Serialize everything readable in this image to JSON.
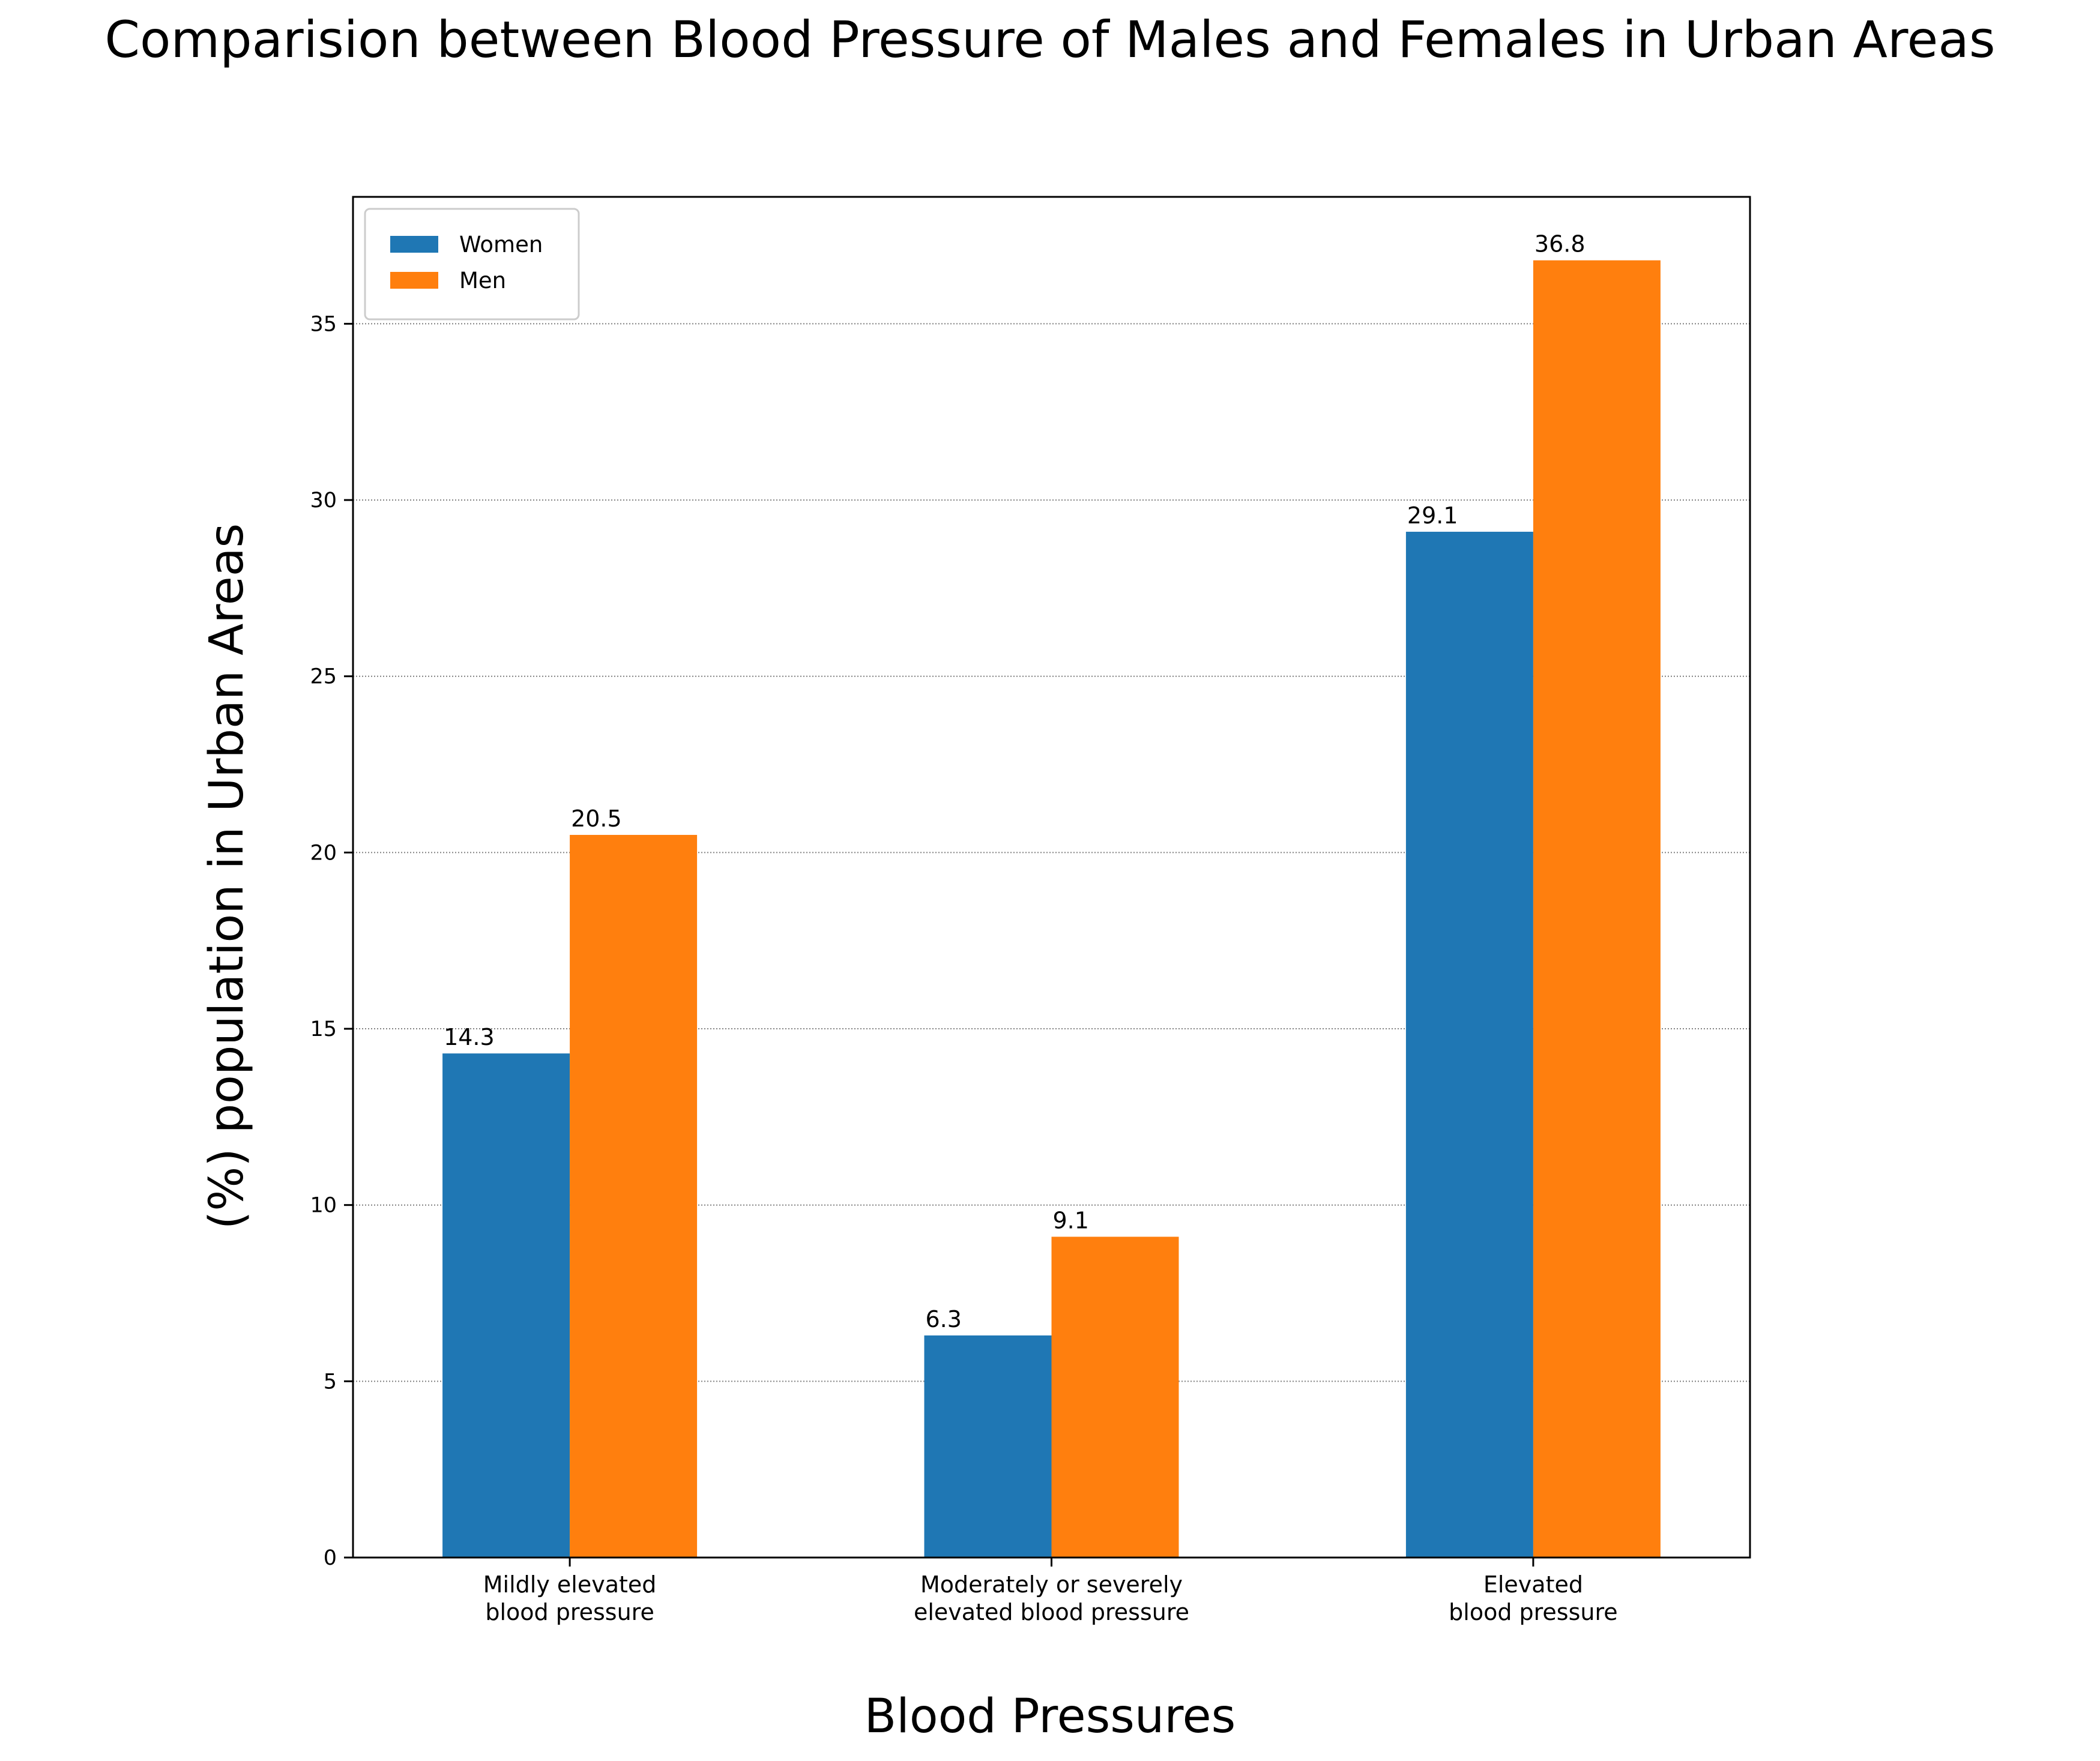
{
  "chart_data": {
    "type": "bar",
    "title": "Comparision between Blood Pressure of Males and Females in Urban Areas",
    "xlabel": "Blood Pressures",
    "ylabel": "(%) population in Urban Areas",
    "categories": [
      [
        "Mildly elevated",
        "blood pressure"
      ],
      [
        "Moderately or severely",
        "elevated blood pressure"
      ],
      [
        "Elevated",
        "blood pressure"
      ]
    ],
    "series": [
      {
        "name": "Women",
        "color": "#1f77b4",
        "values": [
          14.3,
          6.3,
          29.1
        ],
        "labels": [
          "14.3",
          "6.3",
          "29.1"
        ]
      },
      {
        "name": "Men",
        "color": "#ff7f0e",
        "values": [
          20.5,
          9.1,
          36.8
        ],
        "labels": [
          "20.5",
          "9.1",
          "36.8"
        ]
      }
    ],
    "ylim": [
      0,
      38.6
    ],
    "yticks": [
      0,
      5,
      10,
      15,
      20,
      25,
      30,
      35
    ],
    "ytick_labels": [
      "0",
      "5",
      "10",
      "15",
      "20",
      "25",
      "30",
      "35"
    ],
    "grid": "y-dotted",
    "legend_position": "top-left"
  }
}
